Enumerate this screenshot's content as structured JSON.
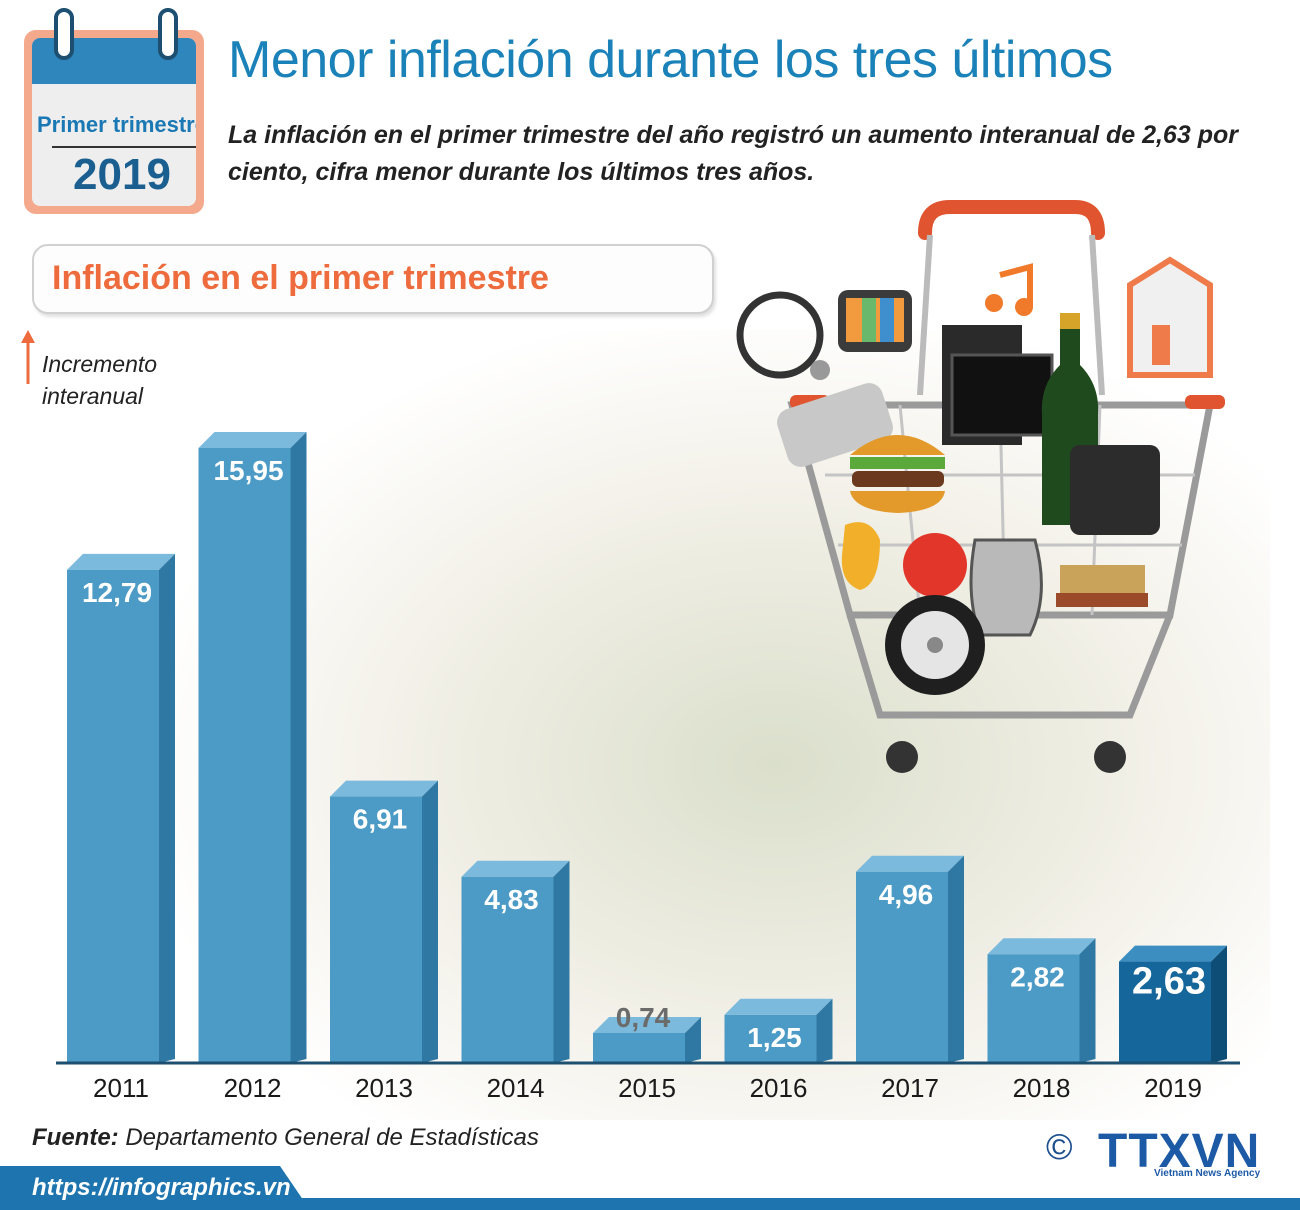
{
  "header": {
    "calendar_quarter": "Primer trimestre",
    "calendar_year": "2019",
    "title": "Menor inflación durante los tres últimos",
    "subtitle": "La inflación en el primer trimestre del año registró un aumento interanual de 2,63 por ciento, cifra menor durante los últimos tres años."
  },
  "section": {
    "heading": "Inflación en el primer trimestre"
  },
  "axis": {
    "caption_line1": "Incremento",
    "caption_line2": "interanual"
  },
  "chart_data": {
    "type": "bar",
    "title": "Inflación en el primer trimestre",
    "ylabel": "Incremento interanual",
    "categories": [
      "2011",
      "2012",
      "2013",
      "2014",
      "2015",
      "2016",
      "2017",
      "2018",
      "2019"
    ],
    "values": [
      12.79,
      15.95,
      6.91,
      4.83,
      0.74,
      1.25,
      4.96,
      2.82,
      2.63
    ],
    "value_labels": [
      "12,79",
      "15,95",
      "6,91",
      "4,83",
      "0,74",
      "1,25",
      "4,96",
      "2,82",
      "2,63"
    ],
    "highlight_index": 8,
    "colors": {
      "bar": "#4b9bc6",
      "bar_side": "#2f78a3",
      "bar_top": "#7cbadd",
      "highlight": "#14669b",
      "highlight_side": "#0d4d76",
      "highlight_top": "#3d8ec0",
      "axis": "#1d4f70"
    }
  },
  "decoration": {
    "cart_icon": "shopping-cart-with-goods-icon"
  },
  "footer": {
    "source_label": "Fuente:",
    "source_text": "Departamento General de Estadísticas",
    "url": "https://infographics.vn",
    "logo_copyright": "©",
    "logo_text": "TTXVN",
    "logo_agency": "Vietnam News Agency"
  }
}
